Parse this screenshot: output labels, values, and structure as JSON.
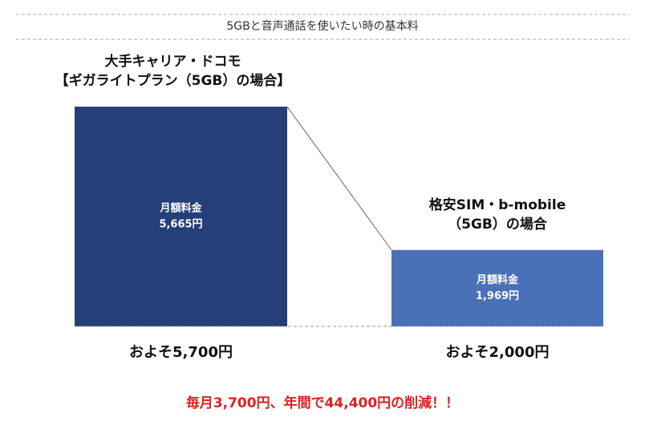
{
  "chart_data": {
    "type": "bar",
    "title": "5GBと音声通話を使いたい時の基本料",
    "categories": [
      [
        "大手キャリア・ドコモ",
        "【ギガライトプラン（5GB）の場合】"
      ],
      [
        "格安SIM・b-mobile",
        "（5GB）の場合"
      ]
    ],
    "value_caption": "月額料金",
    "values": [
      5665,
      1969
    ],
    "value_labels": [
      "5,665円",
      "1,969円"
    ],
    "colors": [
      "#253f78",
      "#4a70b8"
    ],
    "approx_labels": [
      "およそ5,700円",
      "およそ2,000円"
    ],
    "ylim": [
      0,
      5665
    ],
    "annotation": "毎月3,700円、年間で44,400円の削減！！"
  }
}
